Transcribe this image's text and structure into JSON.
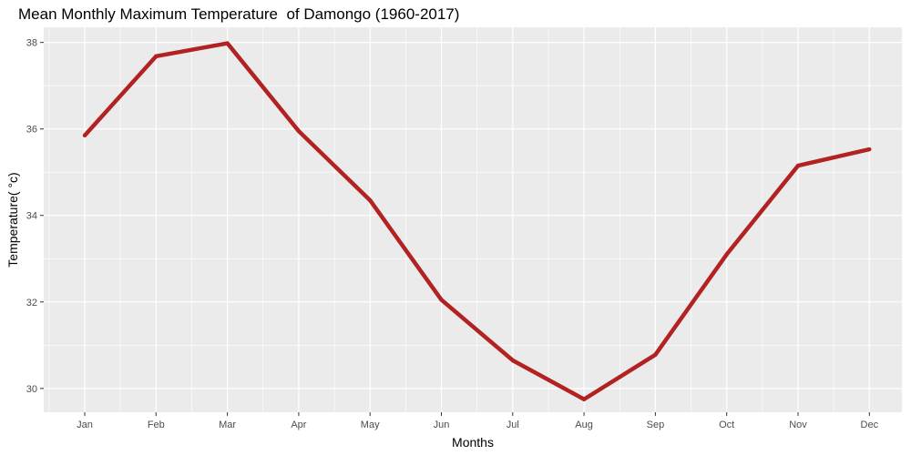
{
  "chart_data": {
    "type": "line",
    "title": "Mean Monthly Maximum Temperature  of Damongo (1960-2017)",
    "xlabel": "Months",
    "ylabel": "Temperature( °c)",
    "categories": [
      "Jan",
      "Feb",
      "Mar",
      "Apr",
      "May",
      "Jun",
      "Jul",
      "Aug",
      "Sep",
      "Oct",
      "Nov",
      "Dec"
    ],
    "series": [
      {
        "values": [
          35.85,
          37.68,
          37.98,
          35.95,
          34.35,
          32.05,
          30.65,
          29.75,
          30.78,
          33.1,
          35.15,
          35.53
        ]
      }
    ],
    "ylim": [
      29.45,
      38.35
    ],
    "yticks": [
      30,
      32,
      34,
      36,
      38
    ],
    "grid": true,
    "legend": "none",
    "line_color": "#b22222",
    "panel_color": "#ebebeb",
    "grid_color": "#ffffff"
  }
}
